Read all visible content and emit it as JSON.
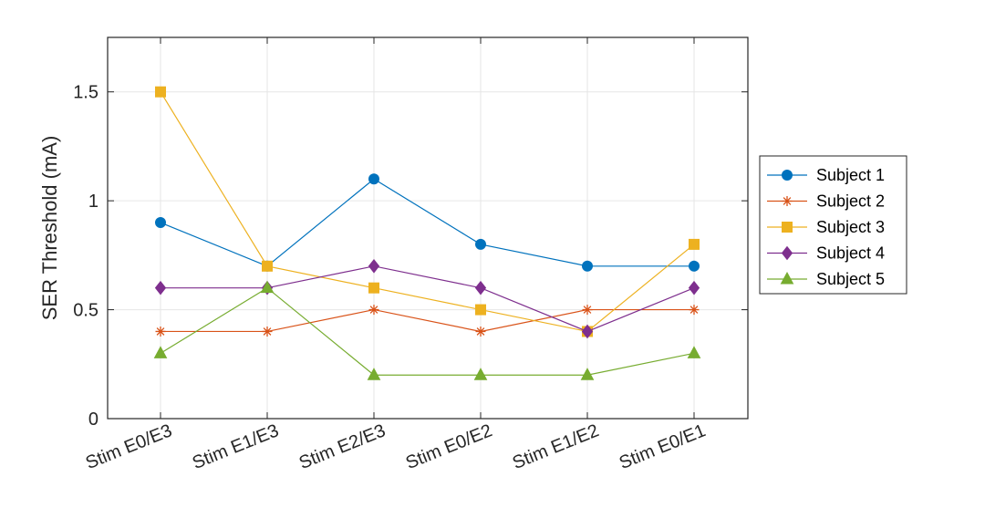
{
  "chart_data": {
    "type": "line",
    "title": "",
    "xlabel": "",
    "ylabel": "SER Threshold (mA)",
    "categories": [
      "Stim E0/E3",
      "Stim E1/E3",
      "Stim E2/E3",
      "Stim E0/E2",
      "Stim E1/E2",
      "Stim E0/E1"
    ],
    "ylim": [
      0,
      1.75
    ],
    "yticks": [
      0,
      0.5,
      1,
      1.5
    ],
    "ytick_labels": [
      "0",
      "0.5",
      "1",
      "1.5"
    ],
    "grid": true,
    "legend_position": "right",
    "series": [
      {
        "name": "Subject 1",
        "values": [
          0.9,
          0.7,
          1.1,
          0.8,
          0.7,
          0.7
        ],
        "color": "#0072BD",
        "marker": "circle"
      },
      {
        "name": "Subject 2",
        "values": [
          0.4,
          0.4,
          0.5,
          0.4,
          0.5,
          0.5
        ],
        "color": "#D95319",
        "marker": "asterisk"
      },
      {
        "name": "Subject 3",
        "values": [
          1.5,
          0.7,
          0.6,
          0.5,
          0.4,
          0.8
        ],
        "color": "#EDB120",
        "marker": "square"
      },
      {
        "name": "Subject 4",
        "values": [
          0.6,
          0.6,
          0.7,
          0.6,
          0.4,
          0.6
        ],
        "color": "#7E2F8E",
        "marker": "diamond"
      },
      {
        "name": "Subject 5",
        "values": [
          0.3,
          0.6,
          0.2,
          0.2,
          0.2,
          0.3
        ],
        "color": "#77AC30",
        "marker": "triangle"
      }
    ]
  }
}
